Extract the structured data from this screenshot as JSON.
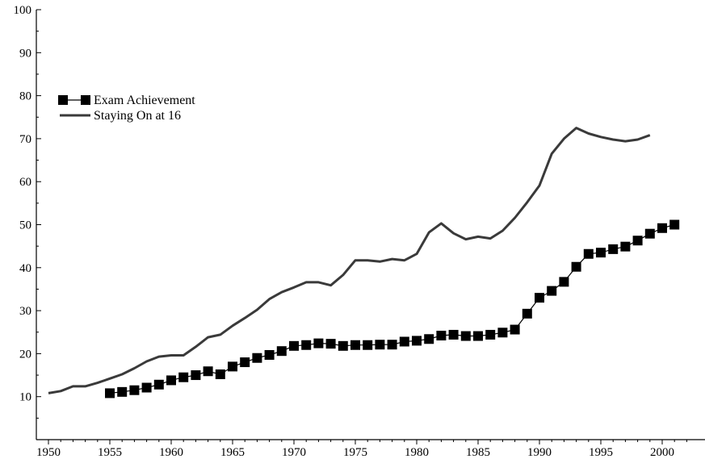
{
  "chart_data": {
    "type": "line",
    "title": "",
    "xlabel": "",
    "ylabel": "",
    "xlim": [
      1950,
      2003
    ],
    "ylim": [
      0,
      100
    ],
    "xticks": [
      1950,
      1955,
      1960,
      1965,
      1970,
      1975,
      1980,
      1985,
      1990,
      1995,
      2000
    ],
    "yticks": [
      10,
      20,
      30,
      40,
      50,
      60,
      70,
      80,
      90,
      100
    ],
    "grid": false,
    "legend_position": "left",
    "series": [
      {
        "name": "Exam Achievement",
        "marker": "square",
        "color": "#000000",
        "x": [
          1955,
          1956,
          1957,
          1958,
          1959,
          1960,
          1961,
          1962,
          1963,
          1964,
          1965,
          1966,
          1967,
          1968,
          1969,
          1970,
          1971,
          1972,
          1973,
          1974,
          1975,
          1976,
          1977,
          1978,
          1979,
          1980,
          1981,
          1982,
          1983,
          1984,
          1985,
          1986,
          1987,
          1988,
          1989,
          1990,
          1991,
          1992,
          1993,
          1994,
          1995,
          1996,
          1997,
          1998,
          1999,
          2000,
          2001
        ],
        "y": [
          10.8,
          11.1,
          11.5,
          12.1,
          12.8,
          13.8,
          14.5,
          15.0,
          15.9,
          15.2,
          17.0,
          18.0,
          19.0,
          19.7,
          20.6,
          21.8,
          22.0,
          22.4,
          22.3,
          21.8,
          22.0,
          22.0,
          22.1,
          22.1,
          22.8,
          23.0,
          23.4,
          24.2,
          24.4,
          24.1,
          24.1,
          24.4,
          24.9,
          25.6,
          29.3,
          33.0,
          34.6,
          36.7,
          40.2,
          43.2,
          43.5,
          44.3,
          44.9,
          46.3,
          47.9,
          49.2,
          50.0
        ]
      },
      {
        "name": "Staying On at 16",
        "marker": "none",
        "color": "#3a3a3a",
        "x": [
          1950,
          1951,
          1952,
          1953,
          1954,
          1955,
          1956,
          1957,
          1958,
          1959,
          1960,
          1961,
          1962,
          1963,
          1964,
          1965,
          1966,
          1967,
          1968,
          1969,
          1970,
          1971,
          1972,
          1973,
          1974,
          1975,
          1976,
          1977,
          1978,
          1979,
          1980,
          1981,
          1982,
          1983,
          1984,
          1985,
          1986,
          1987,
          1988,
          1989,
          1990,
          1991,
          1992,
          1993,
          1994,
          1995,
          1996,
          1997,
          1998,
          1999
        ],
        "y": [
          10.8,
          11.3,
          12.4,
          12.4,
          13.2,
          14.2,
          15.2,
          16.6,
          18.2,
          19.3,
          19.6,
          19.6,
          21.6,
          23.8,
          24.4,
          26.5,
          28.3,
          30.2,
          32.7,
          34.3,
          35.4,
          36.6,
          36.6,
          35.9,
          38.3,
          41.7,
          41.7,
          41.4,
          42.0,
          41.7,
          43.2,
          48.2,
          50.3,
          48.0,
          46.6,
          47.2,
          46.8,
          48.6,
          51.6,
          55.2,
          59.1,
          66.5,
          70.0,
          72.5,
          71.2,
          70.4,
          69.8,
          69.4,
          69.8,
          70.8
        ]
      }
    ]
  }
}
